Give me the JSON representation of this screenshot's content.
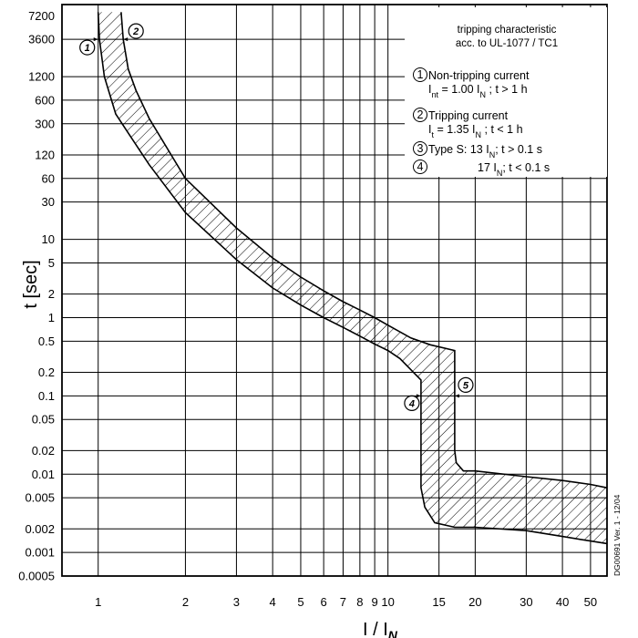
{
  "chart_data": {
    "type": "line",
    "title": "tripping characteristic",
    "subtitle": "acc. to UL-1077 / TC1",
    "xlabel": "I / I",
    "xlabel_sub": "N",
    "ylabel": "t [sec]",
    "x_scale": "log",
    "y_scale": "log",
    "xlim": [
      0.75,
      57
    ],
    "ylim": [
      0.0005,
      10000
    ],
    "x_ticks": [
      {
        "value": 1,
        "label": "1"
      },
      {
        "value": 2,
        "label": "2"
      },
      {
        "value": 3,
        "label": "3"
      },
      {
        "value": 4,
        "label": "4"
      },
      {
        "value": 5,
        "label": "5"
      },
      {
        "value": 6,
        "label": "6"
      },
      {
        "value": 7,
        "label": "7"
      },
      {
        "value": 8,
        "label": "8"
      },
      {
        "value": 9,
        "label": "9"
      },
      {
        "value": 10,
        "label": "10"
      },
      {
        "value": 15,
        "label": "15"
      },
      {
        "value": 20,
        "label": "20"
      },
      {
        "value": 30,
        "label": "30"
      },
      {
        "value": 40,
        "label": "40"
      },
      {
        "value": 50,
        "label": "50"
      }
    ],
    "y_ticks": [
      {
        "value": 7200,
        "label": "7200"
      },
      {
        "value": 3600,
        "label": "3600"
      },
      {
        "value": 1200,
        "label": "1200"
      },
      {
        "value": 600,
        "label": "600"
      },
      {
        "value": 300,
        "label": "300"
      },
      {
        "value": 120,
        "label": "120"
      },
      {
        "value": 60,
        "label": "60"
      },
      {
        "value": 30,
        "label": "30"
      },
      {
        "value": 10,
        "label": "10"
      },
      {
        "value": 5,
        "label": "5"
      },
      {
        "value": 2,
        "label": "2"
      },
      {
        "value": 1,
        "label": "1"
      },
      {
        "value": 0.5,
        "label": "0.5"
      },
      {
        "value": 0.2,
        "label": "0.2"
      },
      {
        "value": 0.1,
        "label": "0.1"
      },
      {
        "value": 0.05,
        "label": "0.05"
      },
      {
        "value": 0.02,
        "label": "0.02"
      },
      {
        "value": 0.01,
        "label": "0.01"
      },
      {
        "value": 0.005,
        "label": "0.005"
      },
      {
        "value": 0.002,
        "label": "0.002"
      },
      {
        "value": 0.001,
        "label": "0.001"
      },
      {
        "value": 0.0005,
        "label": "0.0005"
      }
    ],
    "x_grid": [
      1,
      2,
      3,
      4,
      5,
      6,
      7,
      8,
      9,
      10,
      15,
      20,
      30,
      40,
      50
    ],
    "y_grid": [
      3600,
      1200,
      600,
      300,
      120,
      60,
      30,
      10,
      5,
      2,
      1,
      0.5,
      0.2,
      0.1,
      0.05,
      0.02,
      0.01,
      0.005,
      0.002,
      0.001
    ],
    "series": [
      {
        "name": "lower-bound",
        "points": [
          [
            1.0,
            8000
          ],
          [
            1.01,
            3600
          ],
          [
            1.05,
            1200
          ],
          [
            1.15,
            400
          ],
          [
            1.3,
            200
          ],
          [
            1.5,
            90
          ],
          [
            2.0,
            22
          ],
          [
            3.0,
            5.5
          ],
          [
            4.0,
            2.4
          ],
          [
            5.0,
            1.45
          ],
          [
            6.0,
            1.0
          ],
          [
            7.0,
            0.75
          ],
          [
            8.0,
            0.58
          ],
          [
            9.0,
            0.46
          ],
          [
            10.0,
            0.38
          ],
          [
            11.0,
            0.3
          ],
          [
            13.0,
            0.16
          ],
          [
            13.0,
            0.02
          ],
          [
            13.0,
            0.0067
          ],
          [
            13.4,
            0.0038
          ],
          [
            14.5,
            0.0024
          ],
          [
            17.0,
            0.0021
          ],
          [
            20.0,
            0.0021
          ],
          [
            30.0,
            0.0019
          ],
          [
            40.0,
            0.0016
          ],
          [
            50.0,
            0.0014
          ],
          [
            57.0,
            0.0013
          ]
        ]
      },
      {
        "name": "upper-bound",
        "points": [
          [
            1.2,
            8000
          ],
          [
            1.22,
            3600
          ],
          [
            1.27,
            1500
          ],
          [
            1.35,
            800
          ],
          [
            1.5,
            350
          ],
          [
            2.0,
            60
          ],
          [
            3.0,
            14
          ],
          [
            4.0,
            5.8
          ],
          [
            5.0,
            3.3
          ],
          [
            6.0,
            2.2
          ],
          [
            7.0,
            1.6
          ],
          [
            8.0,
            1.25
          ],
          [
            9.0,
            1.0
          ],
          [
            10.0,
            0.8
          ],
          [
            12.0,
            0.55
          ],
          [
            14.0,
            0.45
          ],
          [
            17.0,
            0.38
          ],
          [
            17.0,
            0.05
          ],
          [
            17.0,
            0.02
          ],
          [
            17.2,
            0.014
          ],
          [
            18.2,
            0.011
          ],
          [
            20.0,
            0.011
          ],
          [
            30.0,
            0.0093
          ],
          [
            40.0,
            0.0083
          ],
          [
            50.0,
            0.0074
          ],
          [
            57.0,
            0.0067
          ]
        ]
      }
    ],
    "markers": [
      {
        "id": "1",
        "label": "1",
        "x": 1.0,
        "y": 3600
      },
      {
        "id": "2",
        "label": "2",
        "x": 1.22,
        "y": 3600
      },
      {
        "id": "4",
        "label": "4",
        "x": 13.0,
        "y": 0.1
      },
      {
        "id": "5",
        "label": "5",
        "x": 17.0,
        "y": 0.1
      }
    ],
    "annotations": [
      {
        "id": "1",
        "circle_label": "1",
        "lines": [
          {
            "text": "Non-tripping current"
          },
          {
            "parts": [
              {
                "t": "I"
              },
              {
                "t": "nt",
                "sub": true
              },
              {
                "t": " = 1.00 I"
              },
              {
                "t": "N",
                "sub": true
              },
              {
                "t": " ; t > 1 h"
              }
            ]
          }
        ]
      },
      {
        "id": "2",
        "circle_label": "2",
        "lines": [
          {
            "text": "Tripping current"
          },
          {
            "parts": [
              {
                "t": "I"
              },
              {
                "t": "t",
                "sub": true
              },
              {
                "t": " = 1.35 I"
              },
              {
                "t": "N",
                "sub": true
              },
              {
                "t": " ; t < 1 h"
              }
            ]
          }
        ]
      },
      {
        "id": "3",
        "circle_label": "3",
        "lines": [
          {
            "parts": [
              {
                "t": "Type S:  13 I"
              },
              {
                "t": "N",
                "sub": true
              },
              {
                "t": "; t > 0.1 s"
              }
            ]
          }
        ]
      },
      {
        "id": "4",
        "circle_label": "4",
        "lines": [
          {
            "parts": [
              {
                "t": "17 I"
              },
              {
                "t": "N",
                "sub": true
              },
              {
                "t": "; t < 0.1 s"
              }
            ]
          }
        ]
      }
    ],
    "side_code": "DG00691 Ver. 1 - 12/04"
  }
}
